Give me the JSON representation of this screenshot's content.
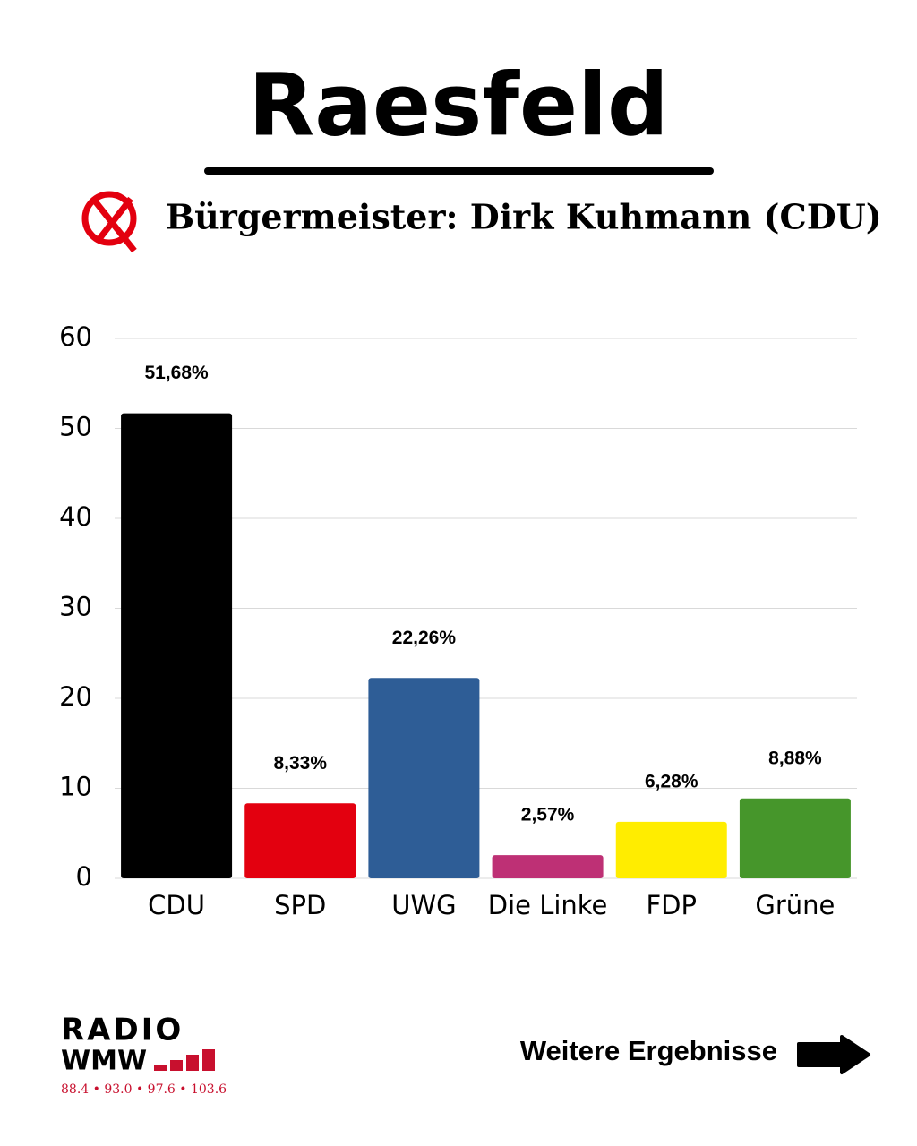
{
  "chart_data": {
    "type": "bar",
    "title": "Raesfeld",
    "subtitle": "Bürgermeister: Dirk Kuhmann (CDU)",
    "categories": [
      "CDU",
      "SPD",
      "UWG",
      "Die Linke",
      "FDP",
      "Grüne"
    ],
    "values": [
      51.68,
      8.33,
      22.26,
      2.57,
      6.28,
      8.88
    ],
    "value_labels": [
      "51,68%",
      "8,33%",
      "22,26%",
      "2,57%",
      "6,28%",
      "8,88%"
    ],
    "colors": [
      "#000000",
      "#e3000f",
      "#2e5d96",
      "#be3075",
      "#ffed00",
      "#46962b"
    ],
    "ylim": [
      0,
      60
    ],
    "yticks": [
      0,
      10,
      20,
      30,
      40,
      50,
      60
    ],
    "grid": true,
    "annotations": [
      "Weitere Ergebnisse"
    ]
  },
  "footer": {
    "logo_lines": [
      "RADIO",
      "WMW"
    ],
    "frequencies": "88.4 • 93.0 • 97.6 • 103.6"
  }
}
